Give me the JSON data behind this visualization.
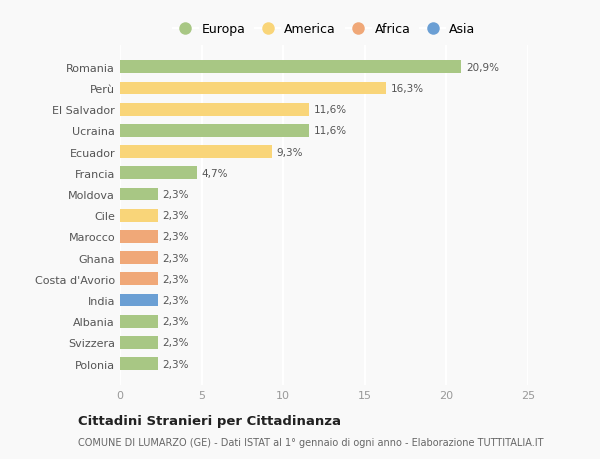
{
  "countries": [
    "Romania",
    "Perù",
    "El Salvador",
    "Ucraina",
    "Ecuador",
    "Francia",
    "Moldova",
    "Cile",
    "Marocco",
    "Ghana",
    "Costa d'Avorio",
    "India",
    "Albania",
    "Svizzera",
    "Polonia"
  ],
  "values": [
    20.9,
    16.3,
    11.6,
    11.6,
    9.3,
    4.7,
    2.3,
    2.3,
    2.3,
    2.3,
    2.3,
    2.3,
    2.3,
    2.3,
    2.3
  ],
  "labels": [
    "20,9%",
    "16,3%",
    "11,6%",
    "11,6%",
    "9,3%",
    "4,7%",
    "2,3%",
    "2,3%",
    "2,3%",
    "2,3%",
    "2,3%",
    "2,3%",
    "2,3%",
    "2,3%",
    "2,3%"
  ],
  "colors": [
    "#a8c784",
    "#f9d579",
    "#f9d579",
    "#a8c784",
    "#f9d579",
    "#a8c784",
    "#a8c784",
    "#f9d579",
    "#f0a878",
    "#f0a878",
    "#f0a878",
    "#6b9fd4",
    "#a8c784",
    "#a8c784",
    "#a8c784"
  ],
  "legend": {
    "Europa": "#a8c784",
    "America": "#f9d579",
    "Africa": "#f0a878",
    "Asia": "#6b9fd4"
  },
  "xlim": [
    0,
    25
  ],
  "xticks": [
    0,
    5,
    10,
    15,
    20,
    25
  ],
  "title": "Cittadini Stranieri per Cittadinanza",
  "subtitle": "COMUNE DI LUMARZO (GE) - Dati ISTAT al 1° gennaio di ogni anno - Elaborazione TUTTITALIA.IT",
  "background_color": "#f9f9f9",
  "grid_color": "#ffffff",
  "bar_height": 0.6
}
